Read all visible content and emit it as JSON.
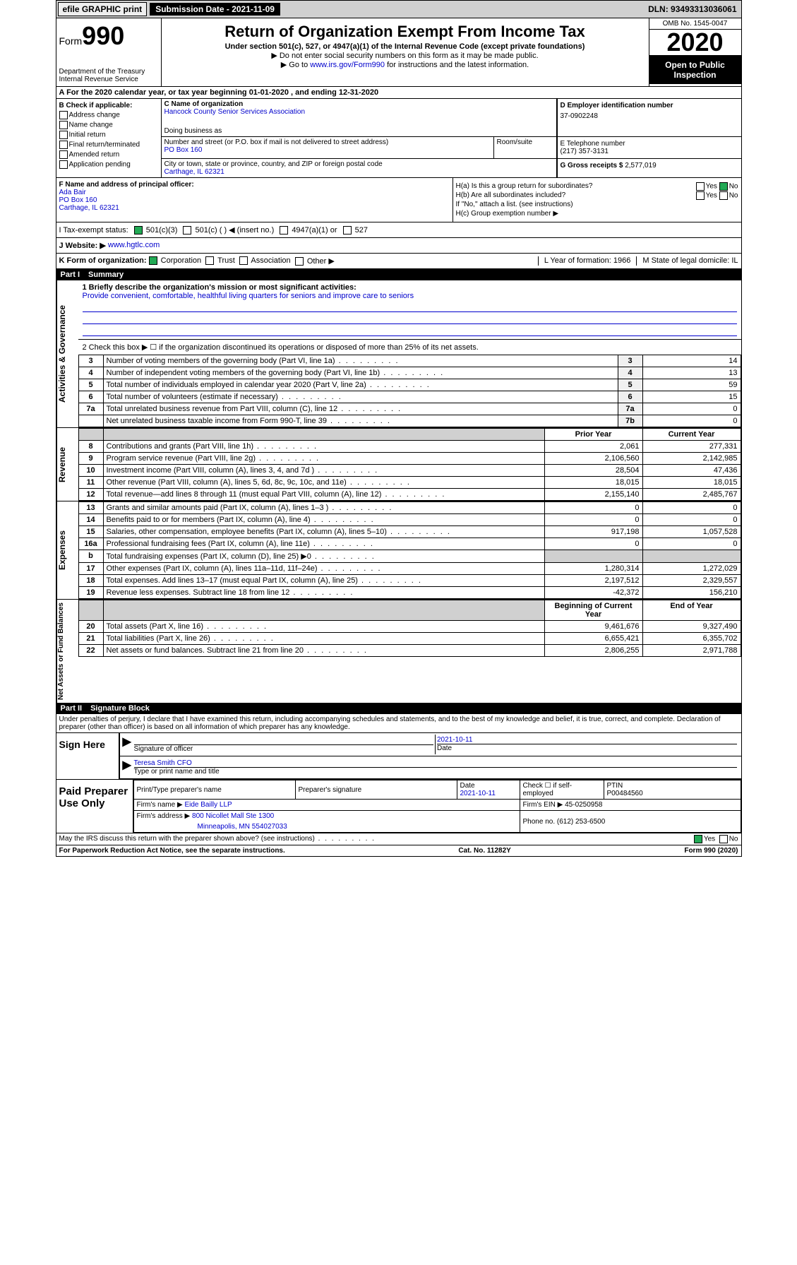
{
  "topbar": {
    "efile": "efile GRAPHIC print",
    "submission_label": "Submission Date - 2021-11-09",
    "dln": "DLN: 93493313036061"
  },
  "header": {
    "form_prefix": "Form",
    "form_number": "990",
    "dept": "Department of the Treasury\nInternal Revenue Service",
    "title": "Return of Organization Exempt From Income Tax",
    "subtitle1": "Under section 501(c), 527, or 4947(a)(1) of the Internal Revenue Code (except private foundations)",
    "subtitle2": "▶ Do not enter social security numbers on this form as it may be made public.",
    "subtitle3_pre": "▶ Go to ",
    "subtitle3_link": "www.irs.gov/Form990",
    "subtitle3_post": " for instructions and the latest information.",
    "omb": "OMB No. 1545-0047",
    "year": "2020",
    "open": "Open to Public Inspection"
  },
  "row_a": "A For the 2020 calendar year, or tax year beginning 01-01-2020   , and ending 12-31-2020",
  "section_b": {
    "label": "B Check if applicable:",
    "items": [
      "Address change",
      "Name change",
      "Initial return",
      "Final return/terminated",
      "Amended return",
      "Application pending"
    ]
  },
  "section_c": {
    "name_label": "C Name of organization",
    "name": "Hancock County Senior Services Association",
    "dba_label": "Doing business as",
    "dba": "",
    "street_label": "Number and street (or P.O. box if mail is not delivered to street address)",
    "street": "PO Box 160",
    "room_label": "Room/suite",
    "city_label": "City or town, state or province, country, and ZIP or foreign postal code",
    "city": "Carthage, IL  62321"
  },
  "section_d": {
    "label": "D Employer identification number",
    "value": "37-0902248"
  },
  "section_e": {
    "label": "E Telephone number",
    "value": "(217) 357-3131"
  },
  "section_g": {
    "label": "G Gross receipts $",
    "value": "2,577,019"
  },
  "section_f": {
    "label": "F  Name and address of principal officer:",
    "name": "Ada Bair",
    "street": "PO Box 160",
    "city": "Carthage, IL  62321"
  },
  "section_h": {
    "a": "H(a)  Is this a group return for subordinates?",
    "a_yes": "Yes",
    "a_no": "No",
    "b": "H(b)  Are all subordinates included?",
    "b_note": "If \"No,\" attach a list. (see instructions)",
    "c": "H(c)  Group exemption number ▶"
  },
  "row_i": {
    "label": "I   Tax-exempt status:",
    "opts": [
      "501(c)(3)",
      "501(c) (  ) ◀ (insert no.)",
      "4947(a)(1) or",
      "527"
    ]
  },
  "row_j": {
    "label": "J   Website: ▶",
    "value": "www.hgtlc.com"
  },
  "row_k": {
    "label": "K Form of organization:",
    "opts": [
      "Corporation",
      "Trust",
      "Association",
      "Other ▶"
    ],
    "l": "L Year of formation: 1966",
    "m": "M State of legal domicile: IL"
  },
  "part1": {
    "title": "Part I",
    "sub": "Summary"
  },
  "summary": {
    "q1": "1  Briefly describe the organization's mission or most significant activities:",
    "mission": "Provide convenient, comfortable, healthful living quarters for seniors and improve care to seniors",
    "q2": "2   Check this box ▶ ☐  if the organization discontinued its operations or disposed of more than 25% of its net assets.",
    "rows_gov": [
      {
        "n": "3",
        "t": "Number of voting members of the governing body (Part VI, line 1a)",
        "box": "3",
        "v": "14"
      },
      {
        "n": "4",
        "t": "Number of independent voting members of the governing body (Part VI, line 1b)",
        "box": "4",
        "v": "13"
      },
      {
        "n": "5",
        "t": "Total number of individuals employed in calendar year 2020 (Part V, line 2a)",
        "box": "5",
        "v": "59"
      },
      {
        "n": "6",
        "t": "Total number of volunteers (estimate if necessary)",
        "box": "6",
        "v": "15"
      },
      {
        "n": "7a",
        "t": "Total unrelated business revenue from Part VIII, column (C), line 12",
        "box": "7a",
        "v": "0"
      },
      {
        "n": "",
        "t": "Net unrelated business taxable income from Form 990-T, line 39",
        "box": "7b",
        "v": "0"
      }
    ],
    "col_hdr_prior": "Prior Year",
    "col_hdr_current": "Current Year",
    "rows_rev": [
      {
        "n": "8",
        "t": "Contributions and grants (Part VIII, line 1h)",
        "p": "2,061",
        "c": "277,331"
      },
      {
        "n": "9",
        "t": "Program service revenue (Part VIII, line 2g)",
        "p": "2,106,560",
        "c": "2,142,985"
      },
      {
        "n": "10",
        "t": "Investment income (Part VIII, column (A), lines 3, 4, and 7d )",
        "p": "28,504",
        "c": "47,436"
      },
      {
        "n": "11",
        "t": "Other revenue (Part VIII, column (A), lines 5, 6d, 8c, 9c, 10c, and 11e)",
        "p": "18,015",
        "c": "18,015"
      },
      {
        "n": "12",
        "t": "Total revenue—add lines 8 through 11 (must equal Part VIII, column (A), line 12)",
        "p": "2,155,140",
        "c": "2,485,767"
      }
    ],
    "rows_exp": [
      {
        "n": "13",
        "t": "Grants and similar amounts paid (Part IX, column (A), lines 1–3 )",
        "p": "0",
        "c": "0"
      },
      {
        "n": "14",
        "t": "Benefits paid to or for members (Part IX, column (A), line 4)",
        "p": "0",
        "c": "0"
      },
      {
        "n": "15",
        "t": "Salaries, other compensation, employee benefits (Part IX, column (A), lines 5–10)",
        "p": "917,198",
        "c": "1,057,528"
      },
      {
        "n": "16a",
        "t": "Professional fundraising fees (Part IX, column (A), line 11e)",
        "p": "0",
        "c": "0"
      },
      {
        "n": "b",
        "t": "Total fundraising expenses (Part IX, column (D), line 25) ▶0",
        "p": "",
        "c": "",
        "shaded": true
      },
      {
        "n": "17",
        "t": "Other expenses (Part IX, column (A), lines 11a–11d, 11f–24e)",
        "p": "1,280,314",
        "c": "1,272,029"
      },
      {
        "n": "18",
        "t": "Total expenses. Add lines 13–17 (must equal Part IX, column (A), line 25)",
        "p": "2,197,512",
        "c": "2,329,557"
      },
      {
        "n": "19",
        "t": "Revenue less expenses. Subtract line 18 from line 12",
        "p": "-42,372",
        "c": "156,210"
      }
    ],
    "col_hdr_begin": "Beginning of Current Year",
    "col_hdr_end": "End of Year",
    "rows_net": [
      {
        "n": "20",
        "t": "Total assets (Part X, line 16)",
        "p": "9,461,676",
        "c": "9,327,490"
      },
      {
        "n": "21",
        "t": "Total liabilities (Part X, line 26)",
        "p": "6,655,421",
        "c": "6,355,702"
      },
      {
        "n": "22",
        "t": "Net assets or fund balances. Subtract line 21 from line 20",
        "p": "2,806,255",
        "c": "2,971,788"
      }
    ]
  },
  "part2": {
    "title": "Part II",
    "sub": "Signature Block"
  },
  "sig": {
    "penalty": "Under penalties of perjury, I declare that I have examined this return, including accompanying schedules and statements, and to the best of my knowledge and belief, it is true, correct, and complete. Declaration of preparer (other than officer) is based on all information of which preparer has any knowledge.",
    "sign_here": "Sign Here",
    "sig_officer": "Signature of officer",
    "date": "2021-10-11",
    "date_label": "Date",
    "name": "Teresa Smith  CFO",
    "name_label": "Type or print name and title"
  },
  "paid": {
    "label": "Paid Preparer Use Only",
    "h_name": "Print/Type preparer's name",
    "h_sig": "Preparer's signature",
    "h_date": "Date",
    "date": "2021-10-11",
    "h_check": "Check ☐ if self-employed",
    "h_ptin": "PTIN",
    "ptin": "P00484560",
    "firm_name_l": "Firm's name    ▶",
    "firm_name": "Eide Bailly LLP",
    "firm_ein_l": "Firm's EIN ▶",
    "firm_ein": "45-0250958",
    "firm_addr_l": "Firm's address ▶",
    "firm_addr": "800 Nicollet Mall Ste 1300",
    "firm_city": "Minneapolis, MN  554027033",
    "phone_l": "Phone no.",
    "phone": "(612) 253-6500"
  },
  "footer": {
    "discuss": "May the IRS discuss this return with the preparer shown above? (see instructions)",
    "yes": "Yes",
    "no": "No",
    "paperwork": "For Paperwork Reduction Act Notice, see the separate instructions.",
    "cat": "Cat. No. 11282Y",
    "form": "Form 990 (2020)"
  }
}
